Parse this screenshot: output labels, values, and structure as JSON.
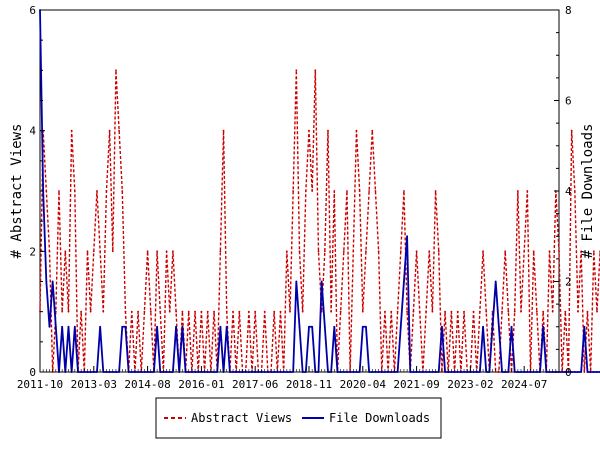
{
  "chart_data": {
    "type": "line",
    "x_axis": {
      "tick_labels": [
        "2011-10",
        "2013-03",
        "2014-08",
        "2016-01",
        "2017-06",
        "2018-11",
        "2020-04",
        "2021-09",
        "2023-02",
        "2024-07"
      ],
      "range": [
        "2011-10",
        "2025-06"
      ]
    },
    "y_axis_left": {
      "label": "# Abstract Views",
      "range": [
        0,
        6
      ],
      "ticks": [
        "0",
        "2",
        "4",
        "6"
      ]
    },
    "y_axis_right": {
      "label": "# File Downloads",
      "range": [
        0,
        8
      ],
      "ticks": [
        "0",
        "2",
        "4",
        "6",
        "8"
      ]
    },
    "legend": {
      "placement": "bottom"
    },
    "grid": false,
    "series": [
      {
        "name": "Abstract Views",
        "axis": "left",
        "color": "#cc0000",
        "style": "dashed",
        "start": "2011-10",
        "values": [
          1,
          4,
          3,
          2,
          0,
          1,
          3,
          1,
          2,
          1,
          4,
          3,
          0,
          1,
          0,
          2,
          1,
          2,
          3,
          2,
          1,
          3,
          4,
          2,
          5,
          4,
          3,
          1,
          0,
          1,
          0,
          1,
          0,
          1,
          2,
          1,
          0,
          2,
          1,
          0,
          2,
          1,
          2,
          1,
          0,
          1,
          0,
          1,
          0,
          1,
          0,
          1,
          0,
          1,
          0,
          1,
          0,
          2,
          4,
          1,
          0,
          1,
          0,
          1,
          0,
          0,
          1,
          0,
          1,
          0,
          0,
          1,
          0,
          0,
          1,
          0,
          1,
          0,
          2,
          1,
          3,
          5,
          2,
          1,
          3,
          4,
          3,
          5,
          2,
          1,
          2,
          4,
          1,
          3,
          0,
          1,
          2,
          3,
          0,
          2,
          4,
          3,
          1,
          2,
          3,
          4,
          3,
          2,
          0,
          1,
          0,
          1,
          0,
          1,
          2,
          3,
          1,
          0,
          1,
          2,
          1,
          0,
          1,
          2,
          1,
          3,
          2,
          0,
          1,
          0,
          1,
          0,
          1,
          0,
          1,
          0,
          0,
          1,
          0,
          1,
          2,
          1,
          0,
          1,
          0,
          0,
          1,
          2,
          1,
          0,
          1,
          3,
          1,
          2,
          3,
          0,
          2,
          1,
          0,
          1,
          0,
          2,
          1,
          3,
          2,
          0,
          1,
          0,
          4,
          3,
          1,
          2,
          0,
          1,
          0,
          2,
          1,
          2,
          1,
          0,
          0,
          1,
          0,
          1,
          0,
          1,
          0,
          1,
          0,
          0,
          1,
          0,
          2,
          1,
          0,
          1,
          0,
          1,
          0,
          1,
          0,
          0,
          1,
          2,
          1,
          1,
          0,
          1,
          0,
          1,
          0,
          0,
          0,
          1,
          0,
          0,
          0,
          0,
          0,
          0,
          0,
          0,
          0,
          0,
          0,
          0,
          0,
          0,
          0,
          1,
          0,
          0,
          0,
          1,
          1,
          1,
          0,
          1,
          0,
          0,
          1,
          2,
          1,
          0,
          0,
          1,
          0,
          1,
          0,
          1,
          0,
          1,
          0,
          1
        ]
      },
      {
        "name": "File Downloads",
        "axis": "right",
        "color": "#0000aa",
        "style": "solid",
        "start": "2011-10",
        "values": [
          8,
          4,
          2,
          1,
          2,
          1,
          0,
          1,
          0,
          1,
          0,
          1,
          0,
          0,
          0,
          0,
          0,
          0,
          0,
          1,
          0,
          0,
          0,
          0,
          0,
          0,
          1,
          1,
          0,
          0,
          0,
          0,
          0,
          0,
          0,
          0,
          0,
          1,
          0,
          0,
          0,
          0,
          0,
          1,
          0,
          1,
          0,
          0,
          0,
          0,
          0,
          0,
          0,
          0,
          0,
          0,
          0,
          1,
          0,
          1,
          0,
          0,
          0,
          0,
          0,
          0,
          0,
          0,
          0,
          0,
          0,
          0,
          0,
          0,
          0,
          0,
          0,
          0,
          0,
          0,
          0,
          2,
          1,
          0,
          0,
          1,
          1,
          0,
          0,
          2,
          1,
          0,
          0,
          1,
          0,
          0,
          0,
          0,
          0,
          0,
          0,
          0,
          1,
          1,
          0,
          0,
          0,
          0,
          0,
          0,
          0,
          0,
          0,
          0,
          1,
          2,
          3,
          0,
          0,
          0,
          0,
          0,
          0,
          0,
          0,
          0,
          0,
          1,
          0,
          0,
          0,
          0,
          0,
          0,
          0,
          0,
          0,
          0,
          0,
          0,
          1,
          0,
          0,
          1,
          2,
          1,
          0,
          0,
          0,
          1,
          0,
          0,
          0,
          0,
          0,
          0,
          0,
          0,
          0,
          1,
          0,
          0,
          0,
          0,
          0,
          0,
          0,
          0,
          0,
          0,
          0,
          0,
          1,
          0,
          0,
          0,
          0,
          0,
          0,
          0,
          0,
          0,
          0,
          0,
          0,
          0,
          0,
          0,
          0,
          0,
          0,
          0,
          0,
          0,
          0,
          0,
          0,
          0,
          0,
          0,
          0,
          0,
          0,
          0,
          0,
          0,
          0,
          0,
          0,
          0,
          0,
          0,
          0,
          0,
          0,
          0,
          0,
          0,
          0,
          0,
          0,
          0,
          0,
          0,
          0,
          0,
          0,
          0,
          0,
          0,
          0,
          0,
          0,
          0,
          0,
          0,
          0,
          0,
          0,
          0,
          0,
          0,
          0,
          0,
          0,
          0,
          0,
          0,
          0,
          0,
          0,
          0,
          0,
          0,
          0,
          0,
          0
        ]
      }
    ]
  }
}
